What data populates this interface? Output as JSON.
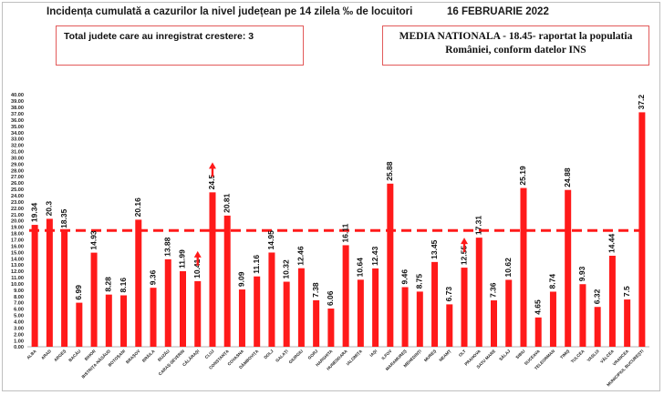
{
  "header": {
    "title": "Incidența cumulată a cazurilor la nivel județean pe 14 zilela ‰ de locuitori",
    "date": "16 FEBRUARIE 2022"
  },
  "info_left": "Total judete care au inregistrat crestere: 3",
  "info_right": "MEDIA NATIONALA - 18.45- raportat la populatia României, conform datelor INS",
  "colors": {
    "bar": "#ff1a1a",
    "reference_line": "#ff1a1a",
    "arrow": "#ff1a1a",
    "box_border": "#e25a5a"
  },
  "chart_data": {
    "type": "bar",
    "title": "Incidența cumulată a cazurilor la nivel județean pe 14 zilela ‰ de locuitori",
    "categories": [
      "ALBA",
      "ARAD",
      "ARGEȘ",
      "BACĂU",
      "BIHOR",
      "BISTRIȚA-NĂSĂUD",
      "BOTOȘANI",
      "BRAȘOV",
      "BRĂILA",
      "BUZĂU",
      "CARAȘ-SEVERIN",
      "CĂLĂRAȘI",
      "CLUJ",
      "CONSTANȚA",
      "COVASNA",
      "DÂMBOVIȚA",
      "DOLJ",
      "GALAȚI",
      "GIURGIU",
      "GORJ",
      "HARGHITA",
      "HUNEDOARA",
      "IALOMIȚA",
      "IAȘI",
      "ILFOV",
      "MARAMUREȘ",
      "MEHEDINȚI",
      "MUREȘ",
      "NEAMȚ",
      "OLT",
      "PRAHOVA",
      "SATU MARE",
      "SĂLAJ",
      "SIBIU",
      "SUCEAVA",
      "TELEORMAN",
      "TIMIȘ",
      "TULCEA",
      "VASLUI",
      "VÂLCEA",
      "VRANCEA",
      "MUNICIPIUL BUCUREȘTI"
    ],
    "values": [
      19.34,
      20.3,
      18.35,
      6.99,
      14.93,
      8.28,
      8.16,
      20.16,
      9.36,
      13.88,
      11.99,
      10.41,
      24.5,
      20.81,
      9.09,
      11.16,
      14.95,
      10.32,
      12.46,
      7.38,
      6.06,
      16.11,
      10.64,
      12.43,
      25.88,
      9.46,
      8.75,
      13.45,
      6.73,
      12.55,
      17.31,
      7.36,
      10.62,
      25.19,
      4.65,
      8.74,
      24.88,
      9.93,
      6.32,
      14.44,
      7.5,
      37.2
    ],
    "data_labels": [
      "19.34",
      "20.3",
      "18.35",
      "6.99",
      "14.93",
      "8.28",
      "8.16",
      "20.16",
      "9.36",
      "13.88",
      "11.99",
      "10.41",
      "24.5",
      "20.81",
      "9.09",
      "11.16",
      "14.95",
      "10.32",
      "12.46",
      "7.38",
      "6.06",
      "16.11",
      "10.64",
      "12.43",
      "25.88",
      "9.46",
      "8.75",
      "13.45",
      "6.73",
      "12.55",
      "17.31",
      "7.36",
      "10.62",
      "25.19",
      "4.65",
      "8.74",
      "24.88",
      "9.93",
      "6.32",
      "14.44",
      "7.5",
      "37.2"
    ],
    "ylim": [
      0,
      40
    ],
    "ytick_step": 1,
    "reference_line": 18.45,
    "increase_arrows": [
      "CĂLĂRAȘI",
      "CLUJ",
      "OLT"
    ],
    "grid": false,
    "legend": "none"
  }
}
